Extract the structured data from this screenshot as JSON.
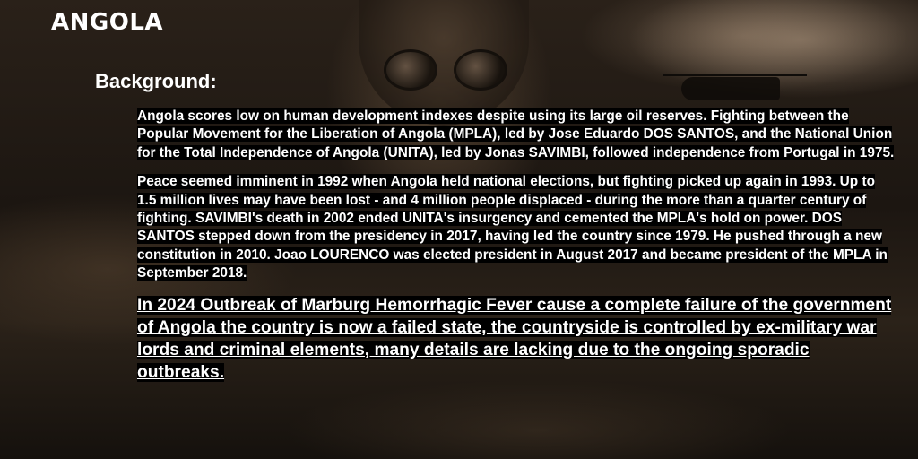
{
  "page": {
    "title": "ANGOLA",
    "section_heading": "Background:",
    "paragraphs": [
      "Angola scores low on human development indexes despite using its large oil reserves. Fighting between the Popular Movement for the Liberation of Angola (MPLA), led by Jose Eduardo DOS SANTOS, and the National Union for the Total Independence of Angola (UNITA), led by Jonas SAVIMBI, followed independence from Portugal in 1975.",
      "Peace seemed imminent in 1992 when Angola held national elections, but fighting picked up again in 1993. Up to 1.5 million lives may have been lost - and 4 million people displaced - during the more than a quarter century of fighting. SAVIMBI's death in 2002 ended UNITA's insurgency and cemented the MPLA's hold on power. DOS SANTOS stepped down from the presidency in 2017, having led the country since 1979. He pushed through a new constitution in 2010. Joao LOURENCO was elected president in August 2017 and became president of the MPLA in September 2018."
    ],
    "highlight": "In 2024 Outbreak of Marburg Hemorrhagic Fever cause a complete failure of the government of Angola the country is now a failed state, the countryside is controlled by ex-military war lords and criminal elements, many details are lacking due to the ongoing sporadic outbreaks."
  }
}
